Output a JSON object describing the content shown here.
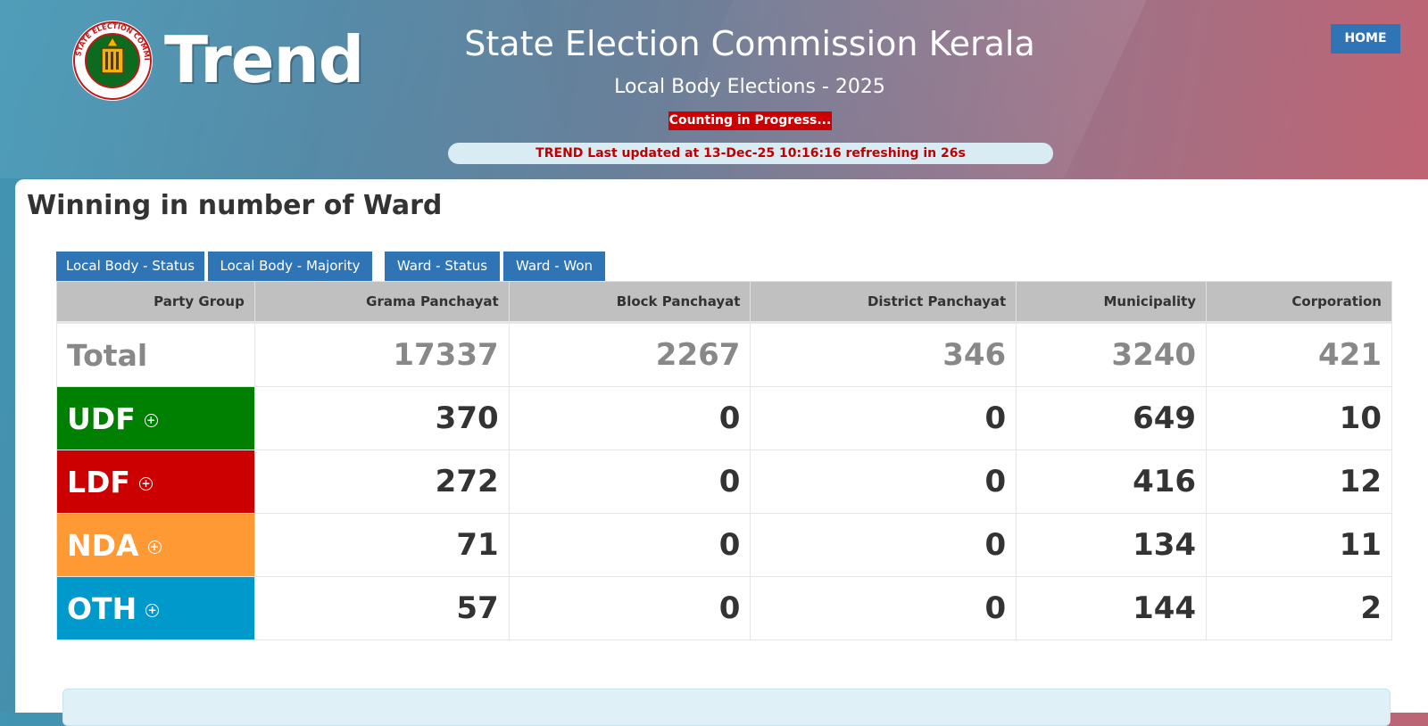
{
  "header": {
    "logo_text": "Trend",
    "seal_text": "STATE ELECTION COMMISSION KERALA",
    "title": "State Election Commission Kerala",
    "subtitle": "Local Body Elections - 2025",
    "status": "Counting in Progress...",
    "updated": "TREND Last updated at 13-Dec-25 10:16:16 refreshing in 26s",
    "home_label": "HOME"
  },
  "panel": {
    "title": "Winning in number of Ward",
    "tabs": [
      {
        "label": "Local Body - Status"
      },
      {
        "label": "Local Body - Majority"
      },
      {
        "label": "Ward - Status"
      },
      {
        "label": "Ward - Won"
      }
    ]
  },
  "table": {
    "headers": [
      "Party Group",
      "Grama Panchayat",
      "Block Panchayat",
      "District Panchayat",
      "Municipality",
      "Corporation"
    ],
    "total": {
      "label": "Total",
      "values": [
        "17337",
        "2267",
        "346",
        "3240",
        "421"
      ]
    },
    "rows": [
      {
        "party": "UDF",
        "color": "#008000",
        "values": [
          "370",
          "0",
          "0",
          "649",
          "10"
        ]
      },
      {
        "party": "LDF",
        "color": "#cc0000",
        "values": [
          "272",
          "0",
          "0",
          "416",
          "12"
        ]
      },
      {
        "party": "NDA",
        "color": "#ff9933",
        "values": [
          "71",
          "0",
          "0",
          "134",
          "11"
        ]
      },
      {
        "party": "OTH",
        "color": "#0099cc",
        "values": [
          "57",
          "0",
          "0",
          "144",
          "2"
        ]
      }
    ]
  },
  "colors": {
    "header_button": "#2f74b5",
    "status_red": "#cc0000"
  }
}
